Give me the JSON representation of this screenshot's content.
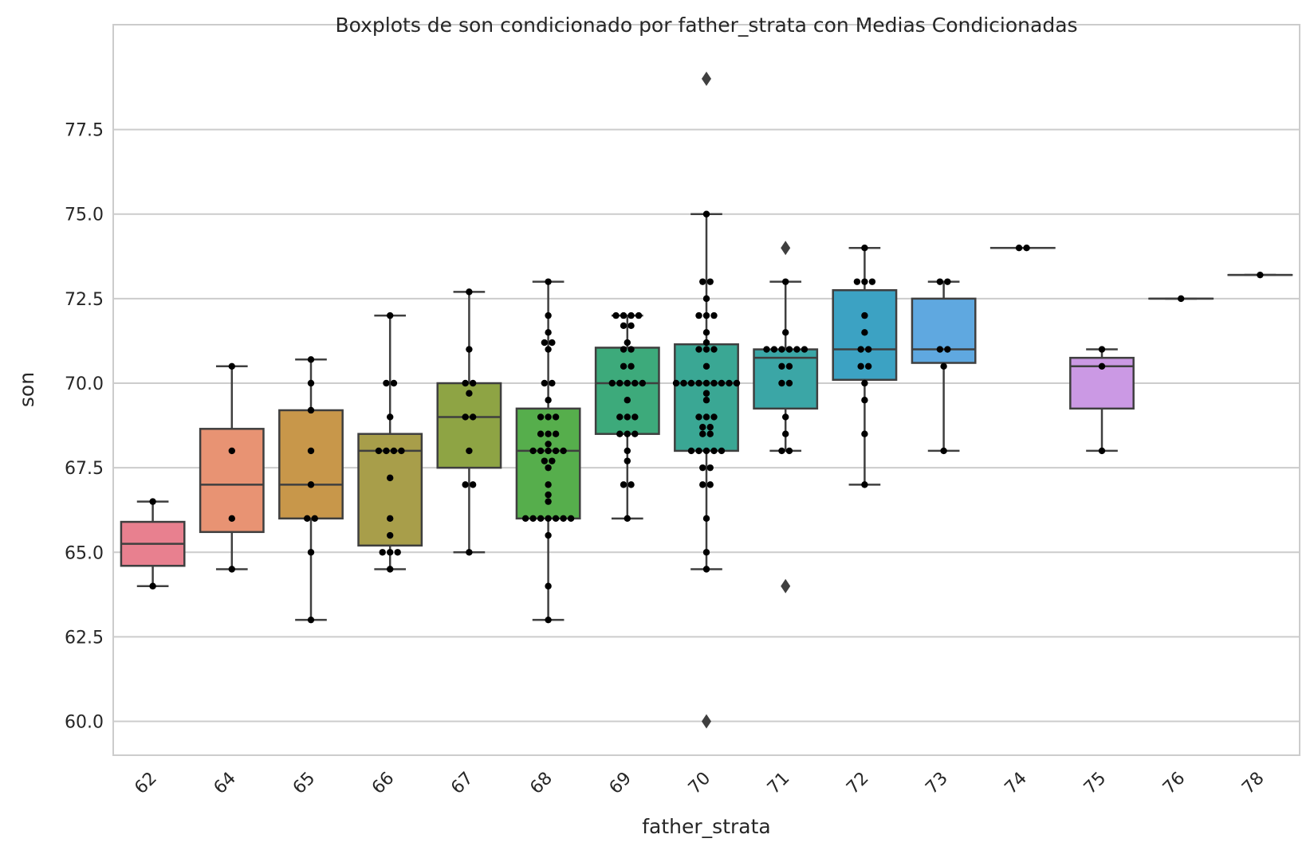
{
  "chart_data": {
    "type": "boxplot",
    "title": "Boxplots de son condicionado por father_strata con Medias Condicionadas",
    "xlabel": "father_strata",
    "ylabel": "son",
    "ylim": [
      59,
      80.6
    ],
    "yticks": [
      "60.0",
      "62.5",
      "65.0",
      "67.5",
      "70.0",
      "72.5",
      "75.0",
      "77.5"
    ],
    "grid": true,
    "categories": [
      "62",
      "64",
      "65",
      "66",
      "67",
      "68",
      "69",
      "70",
      "71",
      "72",
      "73",
      "74",
      "75",
      "76",
      "78"
    ],
    "boxes": [
      {
        "category": "62",
        "color": "#e8808f",
        "q1": 64.6,
        "median": 65.25,
        "q3": 65.9,
        "whisker_low": 64.0,
        "whisker_high": 66.5,
        "outliers": []
      },
      {
        "category": "64",
        "color": "#e89373",
        "q1": 65.6,
        "median": 67.0,
        "q3": 68.65,
        "whisker_low": 64.5,
        "whisker_high": 70.5,
        "outliers": []
      },
      {
        "category": "65",
        "color": "#c8974a",
        "q1": 66.0,
        "median": 67.0,
        "q3": 69.2,
        "whisker_low": 63.0,
        "whisker_high": 70.7,
        "outliers": []
      },
      {
        "category": "66",
        "color": "#a89e4a",
        "q1": 65.2,
        "median": 68.0,
        "q3": 68.5,
        "whisker_low": 64.5,
        "whisker_high": 72.0,
        "outliers": []
      },
      {
        "category": "67",
        "color": "#8ea444",
        "q1": 67.5,
        "median": 69.0,
        "q3": 70.0,
        "whisker_low": 65.0,
        "whisker_high": 72.7,
        "outliers": []
      },
      {
        "category": "68",
        "color": "#56ae4c",
        "q1": 66.0,
        "median": 68.0,
        "q3": 69.25,
        "whisker_low": 63.0,
        "whisker_high": 73.0,
        "outliers": []
      },
      {
        "category": "69",
        "color": "#3daa7b",
        "q1": 68.5,
        "median": 70.0,
        "q3": 71.05,
        "whisker_low": 66.0,
        "whisker_high": 72.0,
        "outliers": []
      },
      {
        "category": "70",
        "color": "#3aa794",
        "q1": 68.0,
        "median": 70.0,
        "q3": 71.15,
        "whisker_low": 64.5,
        "whisker_high": 75.0,
        "outliers": [
          79.0,
          60.0
        ]
      },
      {
        "category": "71",
        "color": "#3ba6a6",
        "q1": 69.25,
        "median": 70.75,
        "q3": 71.0,
        "whisker_low": 68.0,
        "whisker_high": 73.0,
        "outliers": [
          74.0,
          64.0
        ]
      },
      {
        "category": "72",
        "color": "#3ca2c3",
        "q1": 70.1,
        "median": 71.0,
        "q3": 72.75,
        "whisker_low": 67.0,
        "whisker_high": 74.0,
        "outliers": []
      },
      {
        "category": "73",
        "color": "#5fa8e0",
        "q1": 70.6,
        "median": 71.0,
        "q3": 72.5,
        "whisker_low": 68.0,
        "whisker_high": 73.0,
        "outliers": []
      },
      {
        "category": "74",
        "color": "#9ba3e8",
        "q1": 74.0,
        "median": 74.0,
        "q3": 74.0,
        "whisker_low": 74.0,
        "whisker_high": 74.0,
        "outliers": []
      },
      {
        "category": "75",
        "color": "#cb99e4",
        "q1": 69.25,
        "median": 70.5,
        "q3": 70.75,
        "whisker_low": 68.0,
        "whisker_high": 71.0,
        "outliers": []
      },
      {
        "category": "76",
        "color": "#e393d6",
        "q1": 72.5,
        "median": 72.5,
        "q3": 72.5,
        "whisker_low": 72.5,
        "whisker_high": 72.5,
        "outliers": []
      },
      {
        "category": "78",
        "color": "#e992b8",
        "q1": 73.2,
        "median": 73.2,
        "q3": 73.2,
        "whisker_low": 73.2,
        "whisker_high": 73.2,
        "outliers": []
      }
    ],
    "points": {
      "62": [
        66.5,
        64.0
      ],
      "64": [
        70.5,
        68.0,
        66.0,
        64.5
      ],
      "65": [
        70.7,
        70.0,
        69.2,
        68.0,
        67.0,
        66.0,
        66.0,
        65.0,
        63.0
      ],
      "66": [
        72.0,
        70.0,
        70.0,
        69.0,
        68.0,
        68.0,
        68.0,
        68.0,
        67.2,
        66.0,
        65.5,
        65.0,
        65.0,
        65.0,
        64.5
      ],
      "67": [
        72.7,
        71.0,
        70.0,
        70.0,
        69.7,
        69.0,
        69.0,
        68.0,
        67.0,
        67.0,
        65.0
      ],
      "68": [
        73.0,
        72.0,
        71.5,
        71.2,
        71.2,
        71.0,
        70.0,
        70.0,
        69.5,
        69.0,
        69.0,
        69.0,
        68.5,
        68.5,
        68.5,
        68.2,
        68.0,
        68.0,
        68.0,
        68.0,
        68.0,
        67.7,
        67.7,
        67.5,
        67.0,
        66.7,
        66.5,
        66.0,
        66.0,
        66.0,
        66.0,
        66.0,
        66.0,
        66.0,
        65.5,
        64.0,
        63.0
      ],
      "69": [
        72.0,
        72.0,
        72.0,
        72.0,
        71.7,
        71.7,
        71.2,
        71.0,
        71.0,
        70.5,
        70.5,
        70.0,
        70.0,
        70.0,
        70.0,
        70.0,
        69.5,
        69.0,
        69.0,
        69.0,
        68.5,
        68.5,
        68.5,
        68.0,
        67.7,
        67.0,
        67.0,
        66.0
      ],
      "70": [
        75.0,
        73.0,
        73.0,
        72.5,
        72.0,
        72.0,
        72.0,
        71.5,
        71.2,
        71.0,
        71.0,
        71.0,
        70.5,
        70.0,
        70.0,
        70.0,
        70.0,
        70.0,
        70.0,
        70.0,
        70.0,
        70.0,
        69.7,
        69.5,
        69.0,
        69.0,
        69.0,
        68.7,
        68.7,
        68.5,
        68.5,
        68.0,
        68.0,
        68.0,
        68.0,
        68.0,
        67.5,
        67.5,
        67.0,
        67.0,
        66.0,
        65.0,
        64.5
      ],
      "71": [
        73.0,
        71.5,
        71.0,
        71.0,
        71.0,
        71.0,
        71.0,
        71.0,
        70.5,
        70.5,
        70.0,
        70.0,
        69.0,
        68.5,
        68.0,
        68.0
      ],
      "72": [
        74.0,
        73.0,
        73.0,
        73.0,
        72.0,
        71.5,
        71.0,
        71.0,
        70.5,
        70.5,
        70.0,
        69.5,
        68.5,
        67.0
      ],
      "73": [
        73.0,
        73.0,
        71.0,
        71.0,
        70.5,
        68.0
      ],
      "74": [
        74.0,
        74.0
      ],
      "75": [
        71.0,
        70.5,
        68.0
      ],
      "76": [
        72.5
      ],
      "78": [
        73.2
      ]
    },
    "colors": {
      "box_edge": "#3f3f3f",
      "point": "#000000",
      "grid": "#cccccc",
      "spine": "#cccccc"
    }
  }
}
